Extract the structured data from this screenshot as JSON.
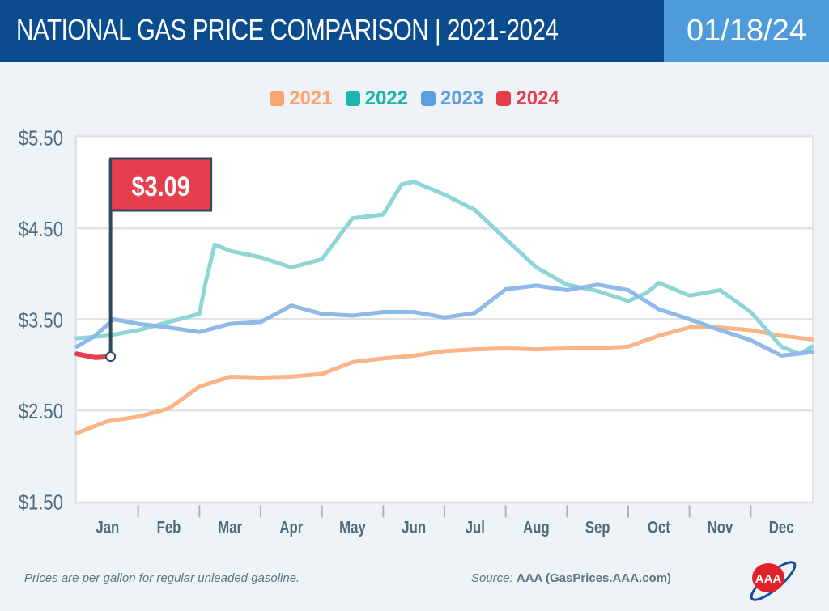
{
  "header": {
    "title": "NATIONAL GAS PRICE COMPARISON | 2021-2024",
    "date": "01/18/24"
  },
  "footer": {
    "note": "Prices are per gallon for regular unleaded gasoline.",
    "source_label": "Source:",
    "source_value": "AAA (GasPrices.AAA.com)",
    "logo_text": "AAA"
  },
  "chart_data": {
    "type": "line",
    "title": "NATIONAL GAS PRICE COMPARISON | 2021-2024",
    "categories": [
      "Jan",
      "Feb",
      "Mar",
      "Apr",
      "May",
      "Jun",
      "Jul",
      "Aug",
      "Sep",
      "Oct",
      "Nov",
      "Dec"
    ],
    "y_ticks": [
      "$5.50",
      "$4.50",
      "$3.50",
      "$2.50",
      "$1.50"
    ],
    "ylim": [
      1.5,
      5.5
    ],
    "grid": true,
    "legend_position": "top",
    "annotation": {
      "label": "$3.09",
      "value": 3.09,
      "series": "2024"
    },
    "series": [
      {
        "name": "2021",
        "color": "#fbb488",
        "legend_color": "#f9a56e",
        "points": [
          [
            0,
            2.25
          ],
          [
            0.5,
            2.38
          ],
          [
            1,
            2.43
          ],
          [
            1.5,
            2.52
          ],
          [
            2,
            2.76
          ],
          [
            2.5,
            2.87
          ],
          [
            3,
            2.86
          ],
          [
            3.5,
            2.87
          ],
          [
            4,
            2.9
          ],
          [
            4.5,
            3.03
          ],
          [
            5,
            3.07
          ],
          [
            5.5,
            3.1
          ],
          [
            6,
            3.15
          ],
          [
            6.5,
            3.17
          ],
          [
            7,
            3.18
          ],
          [
            7.5,
            3.17
          ],
          [
            8,
            3.18
          ],
          [
            8.5,
            3.18
          ],
          [
            9,
            3.2
          ],
          [
            9.5,
            3.32
          ],
          [
            10,
            3.41
          ],
          [
            10.5,
            3.41
          ],
          [
            11,
            3.38
          ],
          [
            11.5,
            3.32
          ],
          [
            12,
            3.28
          ]
        ]
      },
      {
        "name": "2022",
        "color": "#8fd5d5",
        "legend_color": "#1bb5ad",
        "points": [
          [
            0,
            3.29
          ],
          [
            0.5,
            3.32
          ],
          [
            1,
            3.38
          ],
          [
            1.5,
            3.47
          ],
          [
            2,
            3.56
          ],
          [
            2.1,
            3.9
          ],
          [
            2.25,
            4.32
          ],
          [
            2.5,
            4.25
          ],
          [
            3,
            4.18
          ],
          [
            3.5,
            4.07
          ],
          [
            4,
            4.16
          ],
          [
            4.3,
            4.43
          ],
          [
            4.5,
            4.61
          ],
          [
            5,
            4.65
          ],
          [
            5.3,
            4.98
          ],
          [
            5.5,
            5.01
          ],
          [
            6,
            4.87
          ],
          [
            6.5,
            4.7
          ],
          [
            7,
            4.38
          ],
          [
            7.5,
            4.07
          ],
          [
            8,
            3.88
          ],
          [
            8.5,
            3.81
          ],
          [
            9,
            3.7
          ],
          [
            9.3,
            3.79
          ],
          [
            9.5,
            3.9
          ],
          [
            10,
            3.76
          ],
          [
            10.5,
            3.82
          ],
          [
            11,
            3.58
          ],
          [
            11.5,
            3.2
          ],
          [
            11.8,
            3.12
          ],
          [
            12,
            3.2
          ]
        ]
      },
      {
        "name": "2023",
        "color": "#8fb9e6",
        "legend_color": "#5b9fdc",
        "points": [
          [
            0,
            3.2
          ],
          [
            0.3,
            3.32
          ],
          [
            0.6,
            3.5
          ],
          [
            1,
            3.45
          ],
          [
            1.5,
            3.41
          ],
          [
            2,
            3.36
          ],
          [
            2.5,
            3.45
          ],
          [
            3,
            3.47
          ],
          [
            3.5,
            3.65
          ],
          [
            4,
            3.56
          ],
          [
            4.5,
            3.54
          ],
          [
            5,
            3.58
          ],
          [
            5.5,
            3.58
          ],
          [
            6,
            3.52
          ],
          [
            6.5,
            3.57
          ],
          [
            7,
            3.83
          ],
          [
            7.5,
            3.87
          ],
          [
            8,
            3.82
          ],
          [
            8.5,
            3.88
          ],
          [
            9,
            3.82
          ],
          [
            9.5,
            3.61
          ],
          [
            10,
            3.5
          ],
          [
            10.5,
            3.38
          ],
          [
            11,
            3.27
          ],
          [
            11.5,
            3.1
          ],
          [
            12,
            3.14
          ]
        ]
      },
      {
        "name": "2024",
        "color": "#e63e4c",
        "legend_color": "#e63e4c",
        "points": [
          [
            0,
            3.12
          ],
          [
            0.3,
            3.08
          ],
          [
            0.55,
            3.09
          ]
        ]
      }
    ]
  }
}
